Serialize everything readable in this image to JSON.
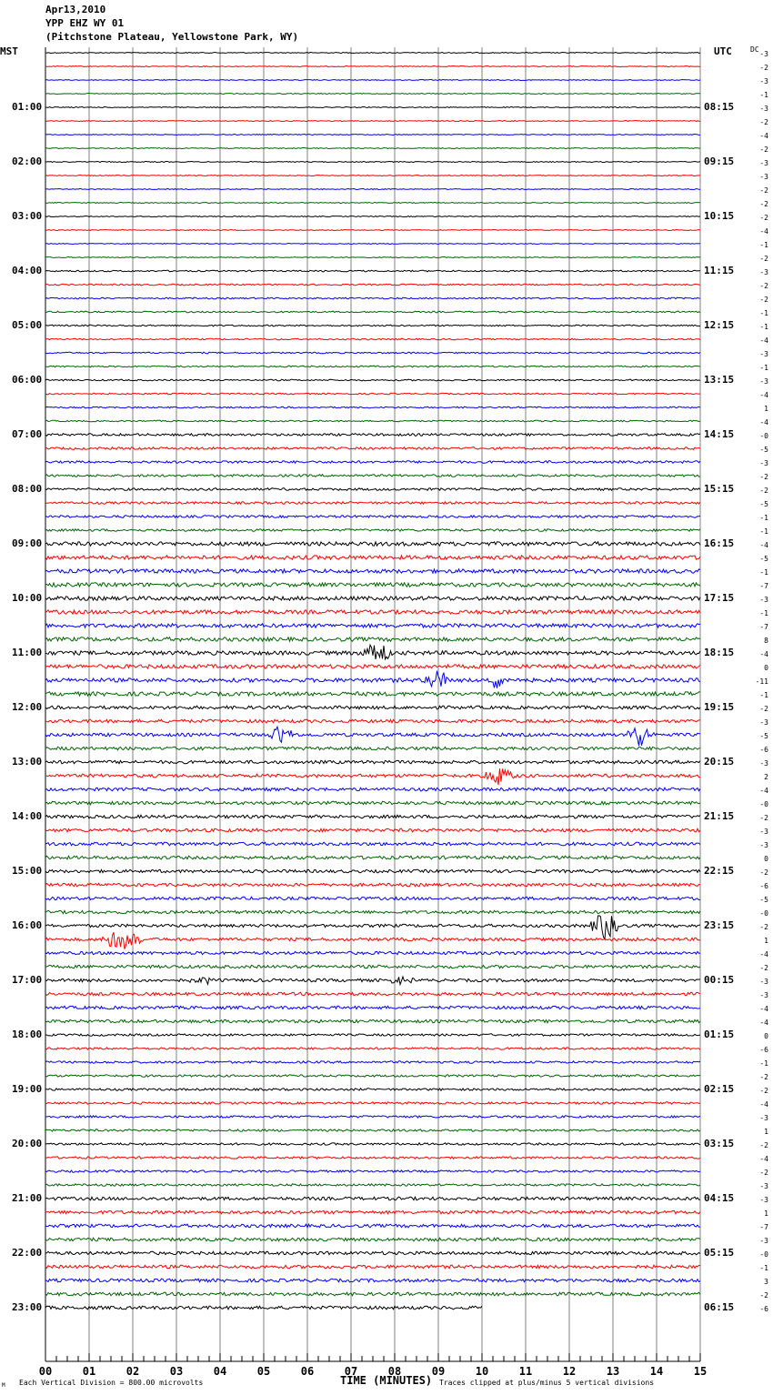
{
  "header": {
    "date": "Apr13,2010",
    "station": "YPP EHZ WY 01",
    "location": "(Pitchstone Plateau, Yellowstone Park, WY)"
  },
  "left_tz": "MST",
  "right_tz": "UTC",
  "dc_label": "DC",
  "footer": {
    "corner_mark": "M",
    "scale": "Each Vertical Division =  800.00 microvolts",
    "xlabel": "TIME (MINUTES)",
    "clip_note": "Traces clipped at plus/minus 5 vertical divisions"
  },
  "colors": {
    "trace_cycle": [
      "#000000",
      "#ff0000",
      "#0000ff",
      "#006400"
    ],
    "grid": "#808080"
  },
  "chart_data": {
    "type": "line",
    "title": "YPP EHZ WY 01 helicorder, Apr13,2010",
    "xlabel": "TIME (MINUTES)",
    "xlim": [
      0,
      15
    ],
    "x_ticks": [
      "00",
      "01",
      "02",
      "03",
      "04",
      "05",
      "06",
      "07",
      "08",
      "09",
      "10",
      "11",
      "12",
      "13",
      "14",
      "15"
    ],
    "minutes_per_line": 15,
    "row_count": 93,
    "last_row_end_minute": 10,
    "left_hour_labels": [
      "",
      "01:00",
      "02:00",
      "03:00",
      "04:00",
      "05:00",
      "06:00",
      "07:00",
      "08:00",
      "09:00",
      "10:00",
      "11:00",
      "12:00",
      "13:00",
      "14:00",
      "15:00",
      "16:00",
      "17:00",
      "18:00",
      "19:00",
      "20:00",
      "21:00",
      "22:00",
      "23:00"
    ],
    "right_hour_labels": [
      "",
      "08:15",
      "09:15",
      "10:15",
      "11:15",
      "12:15",
      "13:15",
      "14:15",
      "15:15",
      "16:15",
      "17:15",
      "18:15",
      "19:15",
      "20:15",
      "21:15",
      "22:15",
      "23:15",
      "00:15",
      "01:15",
      "02:15",
      "03:15",
      "04:15",
      "05:15",
      "06:15"
    ],
    "dc_offsets": [
      "-3",
      "-2",
      "-3",
      "-1",
      "-3",
      "-2",
      "-4",
      "-2",
      "-3",
      "-3",
      "-2",
      "-2",
      "-2",
      "-4",
      "-1",
      "-2",
      "-3",
      "-2",
      "-2",
      "-1",
      "-1",
      "-4",
      "-3",
      "-1",
      "-3",
      "-4",
      "1",
      "-4",
      "-0",
      "-5",
      "-3",
      "-2",
      "-2",
      "-5",
      "-1",
      "-1",
      "-4",
      "-5",
      "-1",
      "-7",
      "-3",
      "-1",
      "-7",
      "8",
      "-4",
      "0",
      "-11",
      "-1",
      "-2",
      "-3",
      "-5",
      "-6",
      "-3",
      "2",
      "-4",
      "-0",
      "-2",
      "-3",
      "-3",
      "0",
      "-2",
      "-6",
      "-5",
      "-0",
      "-2",
      "1",
      "-4",
      "-2",
      "-3",
      "-3",
      "-4",
      "-4",
      "0",
      "-6",
      "-1",
      "-2",
      "-2",
      "-4",
      "-3",
      "1",
      "-2",
      "-4",
      "-2",
      "-3",
      "-3",
      "1",
      "-7",
      "-3",
      "-0",
      "-1",
      "3",
      "-2",
      "-6"
    ],
    "vertical_division_microvolts": 800,
    "clip_divisions": 5
  }
}
